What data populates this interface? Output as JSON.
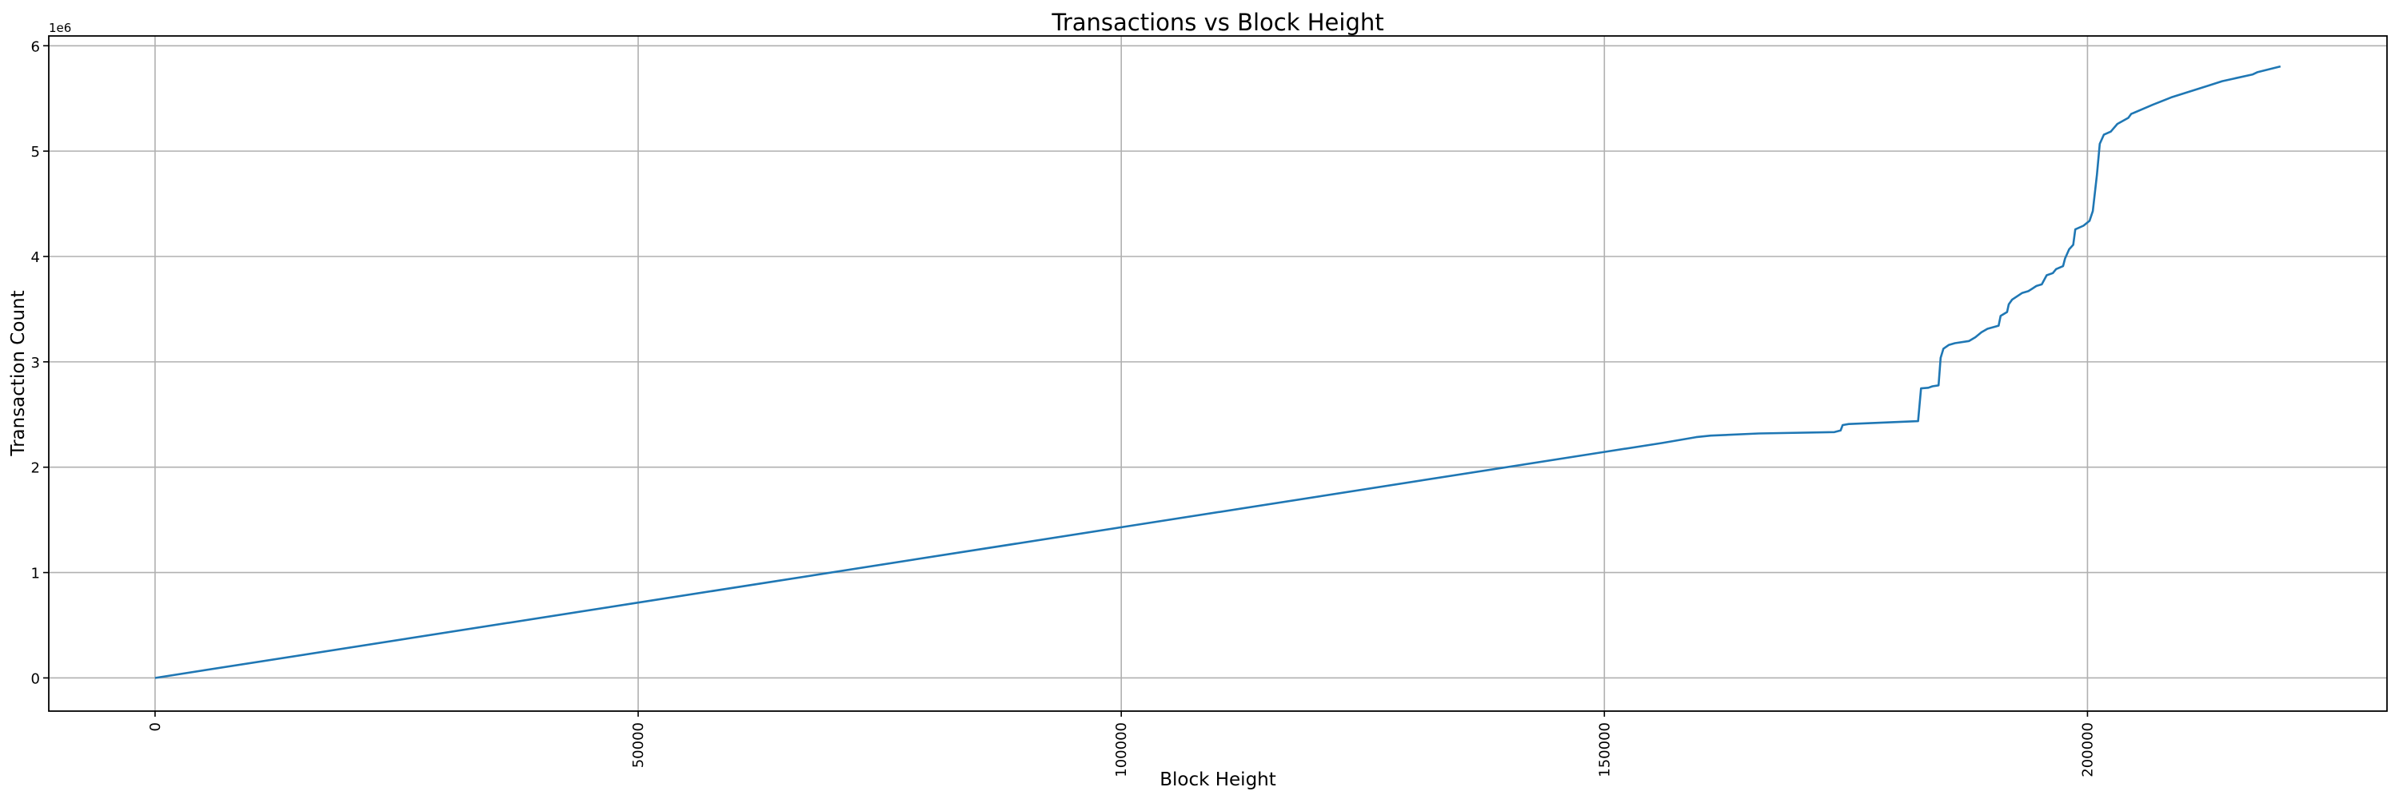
{
  "chart_data": {
    "type": "line",
    "title": "Transactions vs Block Height",
    "xlabel": "Block Height",
    "ylabel": "Transaction Count",
    "y_offset_label": "1e6",
    "xlim": [
      -11000,
      231000
    ],
    "ylim": [
      -315000,
      6093000
    ],
    "x_ticks": [
      0,
      50000,
      100000,
      150000,
      200000
    ],
    "x_tick_labels": [
      "0",
      "50000",
      "100000",
      "150000",
      "200000"
    ],
    "y_ticks": [
      0,
      1000000,
      2000000,
      3000000,
      4000000,
      5000000,
      6000000
    ],
    "y_tick_labels": [
      "0",
      "1",
      "2",
      "3",
      "4",
      "5",
      "6"
    ],
    "x_tick_rotation": 90,
    "grid": true,
    "series": [
      {
        "color": "#1f77b4",
        "x": [
          0,
          50000,
          100000,
          150000,
          156000,
          159500,
          161000,
          166000,
          173810,
          174450,
          174660,
          175290,
          182470,
          182770,
          183530,
          183950,
          184590,
          184800,
          185090,
          185640,
          186280,
          187750,
          188390,
          189020,
          189650,
          190800,
          191010,
          191680,
          191850,
          192190,
          193250,
          193880,
          194720,
          195270,
          195780,
          196410,
          196750,
          197470,
          197680,
          198100,
          198520,
          198740,
          199580,
          200210,
          200550,
          200980,
          201270,
          201690,
          202410,
          203090,
          204230,
          204520,
          206760,
          208660,
          212460,
          213940,
          217110,
          217620,
          219980
        ],
        "y": [
          0,
          715000,
          1430000,
          2145000,
          2230000,
          2285000,
          2300000,
          2320000,
          2333000,
          2348000,
          2400000,
          2410000,
          2437000,
          2748000,
          2754000,
          2768000,
          2777000,
          3038000,
          3125000,
          3160000,
          3177000,
          3198000,
          3233000,
          3280000,
          3314000,
          3343000,
          3436000,
          3473000,
          3546000,
          3590000,
          3654000,
          3671000,
          3720000,
          3735000,
          3822000,
          3842000,
          3880000,
          3908000,
          3981000,
          4068000,
          4111000,
          4257000,
          4292000,
          4338000,
          4431000,
          4779000,
          5069000,
          5156000,
          5185000,
          5258000,
          5316000,
          5353000,
          5440000,
          5510000,
          5620000,
          5664000,
          5728000,
          5750000,
          5804000
        ]
      }
    ]
  }
}
